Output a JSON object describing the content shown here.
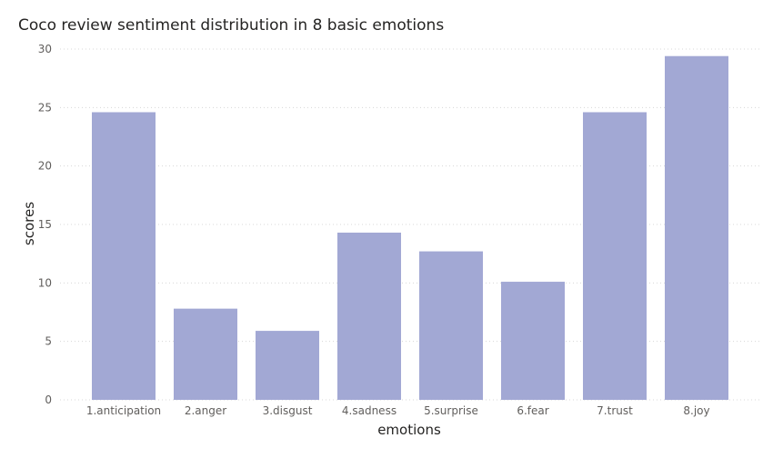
{
  "chart_data": {
    "type": "bar",
    "title": "Coco review sentiment distribution in 8 basic emotions",
    "xlabel": "emotions",
    "ylabel": "scores",
    "categories": [
      "1.anticipation",
      "2.anger",
      "3.disgust",
      "4.sadness",
      "5.surprise",
      "6.fear",
      "7.trust",
      "8.joy"
    ],
    "values": [
      24.6,
      7.8,
      5.9,
      14.3,
      12.7,
      10.1,
      24.6,
      29.4
    ],
    "ylim": [
      0,
      30
    ],
    "yticks": [
      0,
      5,
      10,
      15,
      20,
      25,
      30
    ],
    "grid": true,
    "bar_color": "#a2a8d4"
  }
}
